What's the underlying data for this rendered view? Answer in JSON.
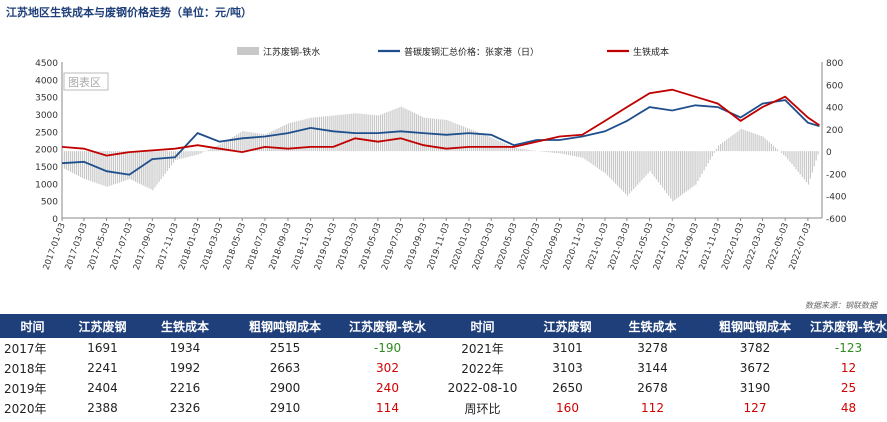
{
  "title": "江苏地区生铁成本与废钢价格走势（单位：元/吨）",
  "source": "数据来源：钢联数据",
  "watermark": "图表区",
  "colors": {
    "bars": "#c8c8c8",
    "scrap": "#1f4e8c",
    "pigiron": "#c00000",
    "header": "#1f3f7a",
    "positive": "#d40000",
    "negative": "#2e8b1e"
  },
  "chart_data": {
    "type": "line",
    "legend_position": "top",
    "left_axis": {
      "min": 0,
      "max": 4500,
      "ticks": [
        "0",
        "500",
        "1000",
        "1500",
        "2000",
        "2500",
        "3000",
        "3500",
        "4000",
        "4500"
      ]
    },
    "right_axis": {
      "min": -600,
      "max": 800,
      "ticks": [
        "-600",
        "-400",
        "-200",
        "0",
        "200",
        "400",
        "600",
        "800"
      ]
    },
    "x_ticks": [
      "2017-01-03",
      "2017-03-03",
      "2017-05-03",
      "2017-07-03",
      "2017-09-03",
      "2017-11-03",
      "2018-01-03",
      "2018-03-03",
      "2018-05-03",
      "2018-07-03",
      "2018-09-03",
      "2018-11-03",
      "2019-01-03",
      "2019-03-03",
      "2019-05-03",
      "2019-07-03",
      "2019-09-03",
      "2019-11-03",
      "2020-01-03",
      "2020-03-03",
      "2020-05-03",
      "2020-07-03",
      "2020-09-03",
      "2020-11-03",
      "2021-01-03",
      "2021-03-03",
      "2021-05-03",
      "2021-07-03",
      "2021-09-03",
      "2021-11-03",
      "2022-01-03",
      "2022-03-03",
      "2022-05-03",
      "2022-07-03"
    ],
    "x_range": [
      "2017-01-03",
      "2022-08-10"
    ],
    "series": [
      {
        "name": "江苏废钢-铁水",
        "axis": "right",
        "kind": "bar",
        "x": [
          "2017-01",
          "2017-03",
          "2017-05",
          "2017-07",
          "2017-09",
          "2017-11",
          "2018-01",
          "2018-03",
          "2018-05",
          "2018-07",
          "2018-09",
          "2018-11",
          "2019-01",
          "2019-03",
          "2019-05",
          "2019-07",
          "2019-09",
          "2019-11",
          "2020-01",
          "2020-03",
          "2020-05",
          "2020-07",
          "2020-09",
          "2020-11",
          "2021-01",
          "2021-03",
          "2021-05",
          "2021-07",
          "2021-09",
          "2021-11",
          "2022-01",
          "2022-03",
          "2022-05",
          "2022-07",
          "2022-08"
        ],
        "values": [
          -150,
          -250,
          -320,
          -250,
          -350,
          -80,
          -30,
          60,
          180,
          150,
          250,
          300,
          320,
          340,
          320,
          400,
          300,
          280,
          200,
          120,
          30,
          0,
          -20,
          -60,
          -200,
          -400,
          -180,
          -450,
          -300,
          50,
          200,
          130,
          -50,
          -300,
          25
        ]
      },
      {
        "name": "普碳废钢汇总价格：张家港（日）",
        "axis": "left",
        "kind": "line",
        "x": [
          "2017-01",
          "2017-03",
          "2017-05",
          "2017-07",
          "2017-09",
          "2017-11",
          "2018-01",
          "2018-03",
          "2018-05",
          "2018-07",
          "2018-09",
          "2018-11",
          "2019-01",
          "2019-03",
          "2019-05",
          "2019-07",
          "2019-09",
          "2019-11",
          "2020-01",
          "2020-03",
          "2020-05",
          "2020-07",
          "2020-09",
          "2020-11",
          "2021-01",
          "2021-03",
          "2021-05",
          "2021-07",
          "2021-09",
          "2021-11",
          "2022-01",
          "2022-03",
          "2022-05",
          "2022-07",
          "2022-08"
        ],
        "values": [
          1580,
          1620,
          1350,
          1250,
          1700,
          1750,
          2450,
          2200,
          2300,
          2350,
          2450,
          2600,
          2500,
          2450,
          2450,
          2500,
          2450,
          2400,
          2450,
          2400,
          2100,
          2250,
          2250,
          2350,
          2500,
          2800,
          3200,
          3100,
          3250,
          3200,
          2900,
          3300,
          3400,
          2750,
          2650
        ]
      },
      {
        "name": "生铁成本",
        "axis": "left",
        "kind": "line",
        "x": [
          "2017-01",
          "2017-03",
          "2017-05",
          "2017-07",
          "2017-09",
          "2017-11",
          "2018-01",
          "2018-03",
          "2018-05",
          "2018-07",
          "2018-09",
          "2018-11",
          "2019-01",
          "2019-03",
          "2019-05",
          "2019-07",
          "2019-09",
          "2019-11",
          "2020-01",
          "2020-03",
          "2020-05",
          "2020-07",
          "2020-09",
          "2020-11",
          "2021-01",
          "2021-03",
          "2021-05",
          "2021-07",
          "2021-09",
          "2021-11",
          "2022-01",
          "2022-03",
          "2022-05",
          "2022-07",
          "2022-08"
        ],
        "values": [
          2050,
          2000,
          1800,
          1900,
          1950,
          2000,
          2100,
          2000,
          1900,
          2050,
          2000,
          2050,
          2050,
          2300,
          2200,
          2300,
          2100,
          2000,
          2050,
          2050,
          2050,
          2200,
          2350,
          2400,
          2800,
          3200,
          3600,
          3700,
          3500,
          3300,
          2800,
          3200,
          3500,
          2900,
          2678
        ]
      }
    ]
  },
  "table": {
    "headers": [
      "时间",
      "江苏废钢",
      "生铁成本",
      "粗钢吨钢成本",
      "江苏废钢-铁水",
      "时间",
      "江苏废钢",
      "生铁成本",
      "粗钢吨钢成本",
      "江苏废钢-铁水"
    ],
    "rows": [
      [
        {
          "v": "2017年",
          "c": ""
        },
        {
          "v": "1691",
          "c": ""
        },
        {
          "v": "1934",
          "c": ""
        },
        {
          "v": "2515",
          "c": ""
        },
        {
          "v": "-190",
          "c": "neg"
        },
        {
          "v": "2021年",
          "c": ""
        },
        {
          "v": "3101",
          "c": ""
        },
        {
          "v": "3278",
          "c": ""
        },
        {
          "v": "3782",
          "c": ""
        },
        {
          "v": "-123",
          "c": "neg"
        }
      ],
      [
        {
          "v": "2018年",
          "c": ""
        },
        {
          "v": "2241",
          "c": ""
        },
        {
          "v": "1992",
          "c": ""
        },
        {
          "v": "2663",
          "c": ""
        },
        {
          "v": "302",
          "c": "pos"
        },
        {
          "v": "2022年",
          "c": ""
        },
        {
          "v": "3103",
          "c": ""
        },
        {
          "v": "3144",
          "c": ""
        },
        {
          "v": "3672",
          "c": ""
        },
        {
          "v": "12",
          "c": "pos"
        }
      ],
      [
        {
          "v": "2019年",
          "c": ""
        },
        {
          "v": "2404",
          "c": ""
        },
        {
          "v": "2216",
          "c": ""
        },
        {
          "v": "2900",
          "c": ""
        },
        {
          "v": "240",
          "c": "pos"
        },
        {
          "v": "2022-08-10",
          "c": ""
        },
        {
          "v": "2650",
          "c": ""
        },
        {
          "v": "2678",
          "c": ""
        },
        {
          "v": "3190",
          "c": ""
        },
        {
          "v": "25",
          "c": "pos"
        }
      ],
      [
        {
          "v": "2020年",
          "c": ""
        },
        {
          "v": "2388",
          "c": ""
        },
        {
          "v": "2326",
          "c": ""
        },
        {
          "v": "2910",
          "c": ""
        },
        {
          "v": "114",
          "c": "pos"
        },
        {
          "v": "周环比",
          "c": ""
        },
        {
          "v": "160",
          "c": "pos"
        },
        {
          "v": "112",
          "c": "pos"
        },
        {
          "v": "127",
          "c": "pos"
        },
        {
          "v": "48",
          "c": "pos"
        }
      ]
    ]
  }
}
